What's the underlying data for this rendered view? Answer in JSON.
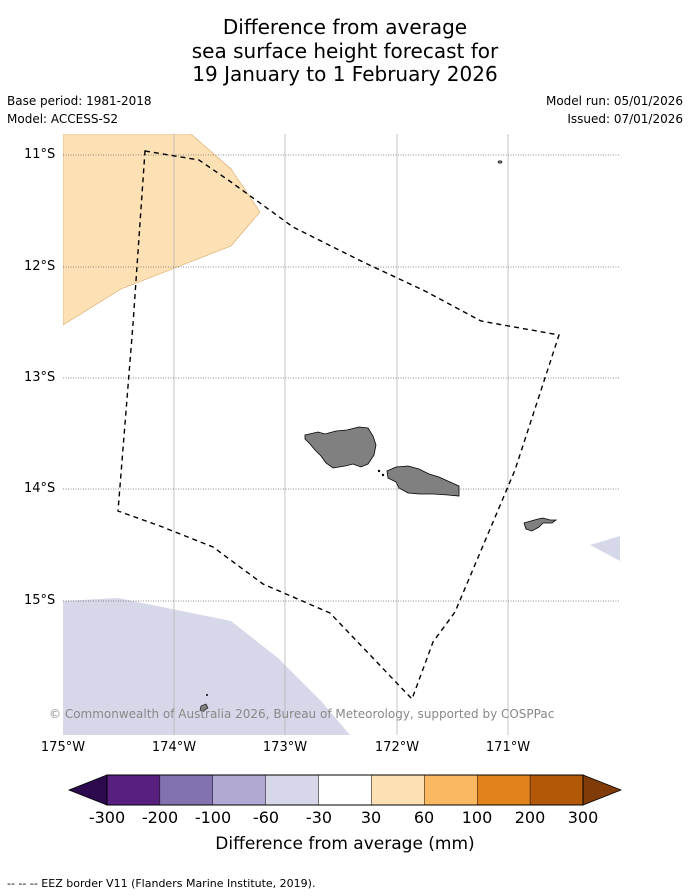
{
  "title": {
    "line1": "Difference from average",
    "line2": "sea surface height forecast for",
    "line3": "19 January to 1 February 2026"
  },
  "meta": {
    "base_period": "Base period: 1981-2018",
    "model": "Model: ACCESS-S2",
    "model_run": "Model run: 05/01/2026",
    "issued": "Issued: 07/01/2026"
  },
  "axes": {
    "lat_labels": [
      "11°S",
      "12°S",
      "13°S",
      "14°S",
      "15°S"
    ],
    "lon_labels": [
      "175°W",
      "174°W",
      "173°W",
      "172°W",
      "171°W"
    ]
  },
  "copyright": "© Commonwealth of Australia 2026, Bureau of Meteorology, supported by COSPPac",
  "colorbar": {
    "title": "Difference from average (mm)",
    "ticks": [
      "-300",
      "-200",
      "-100",
      "-60",
      "-30",
      "30",
      "60",
      "100",
      "200",
      "300"
    ],
    "colors": [
      "#2d0a4e",
      "#57207f",
      "#8273b0",
      "#b1a9d2",
      "#d7d7ea",
      "#ffffff",
      "#fde0b4",
      "#fbb862",
      "#e2821b",
      "#b35807",
      "#7f3b08"
    ]
  },
  "footer": "-- -- -- EEZ border V11 (Flanders Marine Institute, 2019).",
  "colors": {
    "land": "#808080",
    "positive_anomaly": "#fde0b4",
    "negative_anomaly": "#d7d7ea",
    "eez_border": "#000000"
  }
}
